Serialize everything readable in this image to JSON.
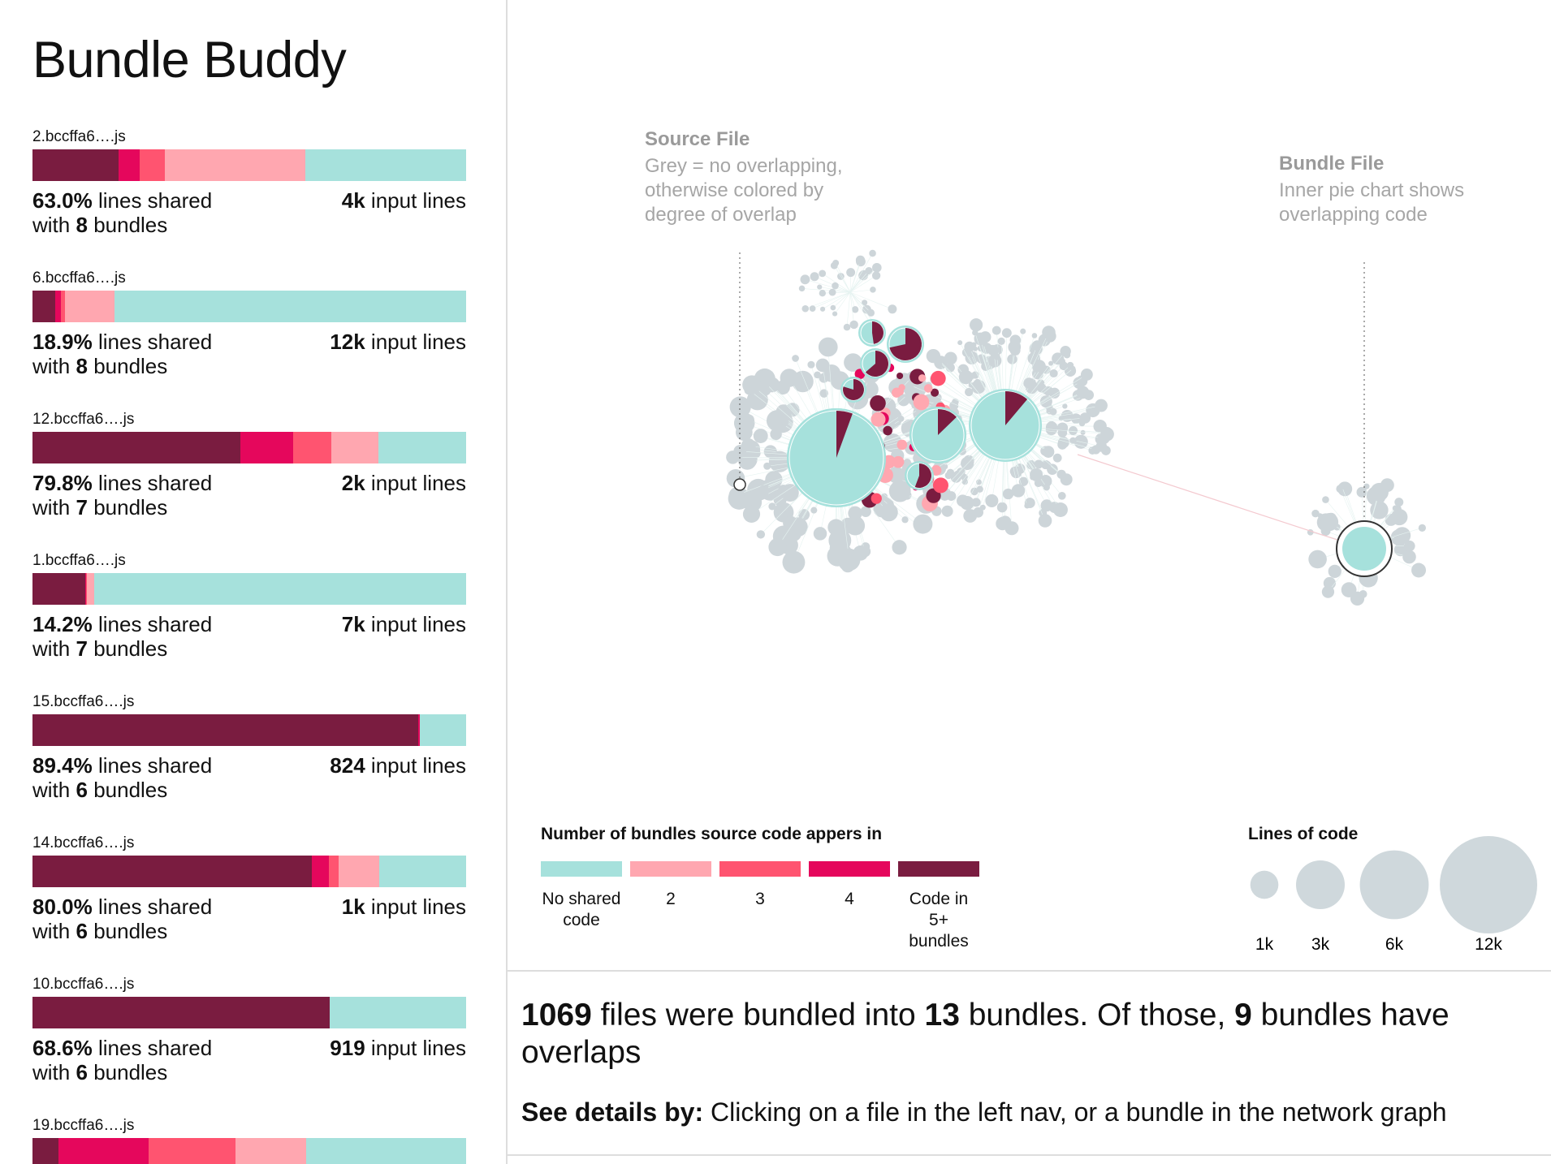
{
  "title": "Bundle Buddy",
  "file_text": {
    "lines_shared": "lines shared",
    "with": "with",
    "bundles": "bundles",
    "input_lines": "input lines"
  },
  "files": [
    {
      "name": "2.bccffa6….js",
      "segments": [
        37.0,
        32.4,
        5.9,
        4.8,
        19.9
      ],
      "shared": "63.0%",
      "bundle_count": 8,
      "input_lines": "4k"
    },
    {
      "name": "6.bccffa6….js",
      "segments": [
        81.1,
        11.5,
        0.9,
        1.3,
        5.2
      ],
      "shared": "18.9%",
      "bundle_count": 8,
      "input_lines": "12k"
    },
    {
      "name": "12.bccffa6….js",
      "segments": [
        20.2,
        10.8,
        8.9,
        12.1,
        48.0
      ],
      "shared": "79.8%",
      "bundle_count": 7,
      "input_lines": "2k"
    },
    {
      "name": "1.bccffa6….js",
      "segments": [
        85.8,
        1.6,
        0.2,
        0.3,
        12.1
      ],
      "shared": "14.2%",
      "bundle_count": 7,
      "input_lines": "7k"
    },
    {
      "name": "15.bccffa6….js",
      "segments": [
        10.6,
        0,
        0,
        0.4,
        89.0
      ],
      "shared": "89.4%",
      "bundle_count": 6,
      "input_lines": "824"
    },
    {
      "name": "14.bccffa6….js",
      "segments": [
        20.0,
        9.4,
        2.2,
        3.9,
        64.5
      ],
      "shared": "80.0%",
      "bundle_count": 6,
      "input_lines": "1k"
    },
    {
      "name": "10.bccffa6….js",
      "segments": [
        31.4,
        0,
        0,
        0,
        68.6
      ],
      "shared": "68.6%",
      "bundle_count": 6,
      "input_lines": "919"
    },
    {
      "name": "19.bccffa6….js",
      "segments": [
        36.8,
        16.4,
        20.1,
        20.8,
        5.9
      ]
    }
  ],
  "annotations": {
    "source_file": {
      "title": "Source File",
      "text": "Grey = no overlapping, otherwise colored by degree of overlap"
    },
    "bundle_file": {
      "title": "Bundle File",
      "text": "Inner pie chart shows overlapping code"
    }
  },
  "legend": {
    "title": "Number of bundles source code appers in",
    "items": [
      {
        "label": "No shared code",
        "color": "#a6e1dc"
      },
      {
        "label": "2",
        "color": "#ffa7b0"
      },
      {
        "label": "3",
        "color": "#ff5470"
      },
      {
        "label": "4",
        "color": "#e5075c"
      },
      {
        "label": "Code in 5+ bundles",
        "color": "#7a1c40"
      }
    ]
  },
  "size_legend": {
    "title": "Lines of code",
    "items": [
      {
        "value": 1000,
        "label": "1k"
      },
      {
        "value": 3000,
        "label": "3k"
      },
      {
        "value": 6000,
        "label": "6k"
      },
      {
        "value": 12000,
        "label": "12k"
      }
    ]
  },
  "summary": {
    "parts": [
      {
        "text": "1069",
        "bold": true
      },
      {
        "text": " files were bundled into "
      },
      {
        "text": "13",
        "bold": true
      },
      {
        "text": " bundles. Of those, "
      },
      {
        "text": "9",
        "bold": true
      },
      {
        "text": " bundles have overlaps"
      }
    ]
  },
  "details": {
    "label": "See details by:",
    "text": "Clicking on a file in the left nav, or a bundle in the network graph"
  }
}
